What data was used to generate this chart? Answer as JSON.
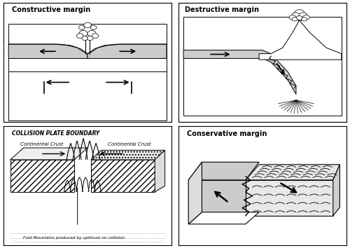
{
  "bg_color": "#ffffff",
  "light_gray": "#cccccc",
  "mid_gray": "#aaaaaa",
  "panel_titles": {
    "top_left": "Constructive margin",
    "top_right": "Destructive margin",
    "bottom_right": "Conservative margin"
  },
  "collision_labels": {
    "title": "COLLISION PLATE BOUNDARY",
    "left": "Continental Crust",
    "right": "Continental Crust",
    "bottom": "Fold Mountains produced by upthrust on collision"
  }
}
